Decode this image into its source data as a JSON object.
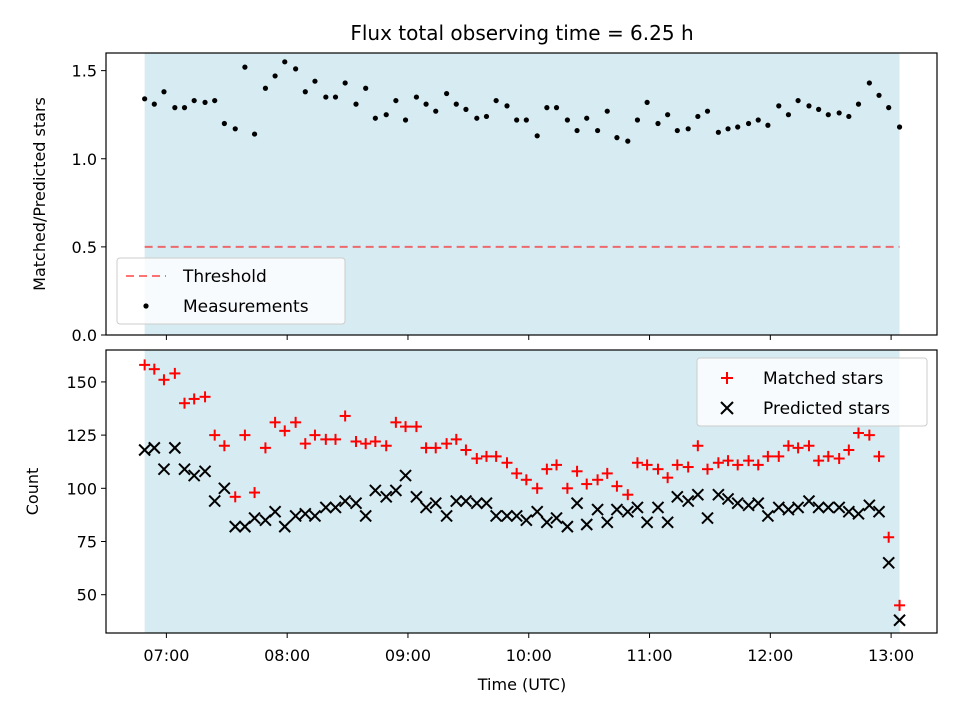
{
  "title": "Flux total observing time = 6.25 h",
  "colors": {
    "shade": "#add8e6",
    "threshold": "#ff0000",
    "measurement": "#000000",
    "matched": "#ff0000",
    "predicted": "#000000"
  },
  "chart_data": [
    {
      "type": "scatter",
      "panel": "top",
      "ylabel": "Matched/Predicted stars",
      "ylim": [
        0,
        1.6
      ],
      "yticks": [
        0.0,
        0.5,
        1.0,
        1.5
      ],
      "ytick_labels": [
        "0.0",
        "0.5",
        "1.0",
        "1.5"
      ],
      "xlim_hours": [
        6.5,
        13.38
      ],
      "shaded_span_hours": [
        6.82,
        13.07
      ],
      "threshold": 0.5,
      "legend_position": "lower-left",
      "legend": [
        {
          "label": "Threshold",
          "style": "dashed-line"
        },
        {
          "label": "Measurements",
          "style": "dot"
        }
      ],
      "series": [
        {
          "name": "Measurements",
          "x_hours": [
            6.82,
            6.9,
            6.98,
            7.07,
            7.15,
            7.23,
            7.32,
            7.4,
            7.48,
            7.57,
            7.65,
            7.73,
            7.82,
            7.9,
            7.98,
            8.07,
            8.15,
            8.23,
            8.32,
            8.4,
            8.48,
            8.57,
            8.65,
            8.73,
            8.82,
            8.9,
            8.98,
            9.07,
            9.15,
            9.23,
            9.32,
            9.4,
            9.48,
            9.57,
            9.65,
            9.73,
            9.82,
            9.9,
            9.98,
            10.07,
            10.15,
            10.23,
            10.32,
            10.4,
            10.48,
            10.57,
            10.65,
            10.73,
            10.82,
            10.9,
            10.98,
            11.07,
            11.15,
            11.23,
            11.32,
            11.4,
            11.48,
            11.57,
            11.65,
            11.73,
            11.82,
            11.9,
            11.98,
            12.07,
            12.15,
            12.23,
            12.32,
            12.4,
            12.48,
            12.57,
            12.65,
            12.73,
            12.82,
            12.9,
            12.98,
            13.07
          ],
          "values": [
            1.34,
            1.31,
            1.38,
            1.29,
            1.29,
            1.33,
            1.32,
            1.33,
            1.2,
            1.17,
            1.52,
            1.14,
            1.4,
            1.47,
            1.55,
            1.51,
            1.38,
            1.44,
            1.35,
            1.35,
            1.43,
            1.31,
            1.4,
            1.23,
            1.25,
            1.33,
            1.22,
            1.35,
            1.31,
            1.27,
            1.37,
            1.31,
            1.28,
            1.23,
            1.24,
            1.33,
            1.3,
            1.22,
            1.22,
            1.13,
            1.29,
            1.29,
            1.22,
            1.16,
            1.23,
            1.16,
            1.27,
            1.12,
            1.1,
            1.22,
            1.32,
            1.2,
            1.25,
            1.16,
            1.17,
            1.24,
            1.27,
            1.15,
            1.17,
            1.18,
            1.2,
            1.22,
            1.19,
            1.3,
            1.25,
            1.33,
            1.3,
            1.28,
            1.25,
            1.26,
            1.24,
            1.31,
            1.43,
            1.36,
            1.29,
            1.18
          ]
        }
      ]
    },
    {
      "type": "scatter",
      "panel": "bottom",
      "xlabel": "Time (UTC)",
      "ylabel": "Count",
      "ylim": [
        32,
        165
      ],
      "yticks": [
        50,
        75,
        100,
        125,
        150
      ],
      "ytick_labels": [
        "50",
        "75",
        "100",
        "125",
        "150"
      ],
      "xlim_hours": [
        6.5,
        13.38
      ],
      "xticks_hours": [
        7,
        8,
        9,
        10,
        11,
        12,
        13
      ],
      "xtick_labels": [
        "07:00",
        "08:00",
        "09:00",
        "10:00",
        "11:00",
        "12:00",
        "13:00"
      ],
      "shaded_span_hours": [
        6.82,
        13.07
      ],
      "legend_position": "upper-right",
      "legend": [
        {
          "label": "Matched stars",
          "style": "plus"
        },
        {
          "label": "Predicted stars",
          "style": "cross"
        }
      ],
      "series": [
        {
          "name": "Matched stars",
          "x_hours": [
            6.82,
            6.9,
            6.98,
            7.07,
            7.15,
            7.23,
            7.32,
            7.4,
            7.48,
            7.57,
            7.65,
            7.73,
            7.82,
            7.9,
            7.98,
            8.07,
            8.15,
            8.23,
            8.32,
            8.4,
            8.48,
            8.57,
            8.65,
            8.73,
            8.82,
            8.9,
            8.98,
            9.07,
            9.15,
            9.23,
            9.32,
            9.4,
            9.48,
            9.57,
            9.65,
            9.73,
            9.82,
            9.9,
            9.98,
            10.07,
            10.15,
            10.23,
            10.32,
            10.4,
            10.48,
            10.57,
            10.65,
            10.73,
            10.82,
            10.9,
            10.98,
            11.07,
            11.15,
            11.23,
            11.32,
            11.4,
            11.48,
            11.57,
            11.65,
            11.73,
            11.82,
            11.9,
            11.98,
            12.07,
            12.15,
            12.23,
            12.32,
            12.4,
            12.48,
            12.57,
            12.65,
            12.73,
            12.82,
            12.9,
            12.98,
            13.07
          ],
          "values": [
            158,
            156,
            151,
            154,
            140,
            142,
            143,
            125,
            120,
            96,
            125,
            98,
            119,
            131,
            127,
            131,
            121,
            125,
            123,
            123,
            134,
            122,
            121,
            122,
            120,
            131,
            129,
            129,
            119,
            119,
            121,
            123,
            118,
            114,
            115,
            115,
            112,
            107,
            104,
            100,
            109,
            111,
            100,
            108,
            102,
            104,
            107,
            101,
            97,
            112,
            111,
            109,
            105,
            111,
            110,
            120,
            109,
            112,
            113,
            111,
            113,
            111,
            115,
            115,
            120,
            119,
            120,
            113,
            115,
            114,
            118,
            126,
            125,
            115,
            77,
            45
          ]
        },
        {
          "name": "Predicted stars",
          "x_hours": [
            6.82,
            6.9,
            6.98,
            7.07,
            7.15,
            7.23,
            7.32,
            7.4,
            7.48,
            7.57,
            7.65,
            7.73,
            7.82,
            7.9,
            7.98,
            8.07,
            8.15,
            8.23,
            8.32,
            8.4,
            8.48,
            8.57,
            8.65,
            8.73,
            8.82,
            8.9,
            8.98,
            9.07,
            9.15,
            9.23,
            9.32,
            9.4,
            9.48,
            9.57,
            9.65,
            9.73,
            9.82,
            9.9,
            9.98,
            10.07,
            10.15,
            10.23,
            10.32,
            10.4,
            10.48,
            10.57,
            10.65,
            10.73,
            10.82,
            10.9,
            10.98,
            11.07,
            11.15,
            11.23,
            11.32,
            11.4,
            11.48,
            11.57,
            11.65,
            11.73,
            11.82,
            11.9,
            11.98,
            12.07,
            12.15,
            12.23,
            12.32,
            12.4,
            12.48,
            12.57,
            12.65,
            12.73,
            12.82,
            12.9,
            12.98,
            13.07
          ],
          "values": [
            118,
            119,
            109,
            119,
            109,
            106,
            108,
            94,
            100,
            82,
            82,
            86,
            85,
            89,
            82,
            87,
            88,
            87,
            91,
            91,
            94,
            93,
            87,
            99,
            96,
            99,
            106,
            96,
            91,
            93,
            87,
            94,
            94,
            93,
            93,
            87,
            87,
            87,
            85,
            89,
            84,
            86,
            82,
            93,
            83,
            90,
            84,
            90,
            89,
            91,
            84,
            91,
            84,
            96,
            94,
            97,
            86,
            97,
            95,
            93,
            92,
            93,
            87,
            91,
            90,
            91,
            94,
            91,
            91,
            91,
            89,
            88,
            92,
            89,
            65,
            38
          ]
        }
      ]
    }
  ]
}
